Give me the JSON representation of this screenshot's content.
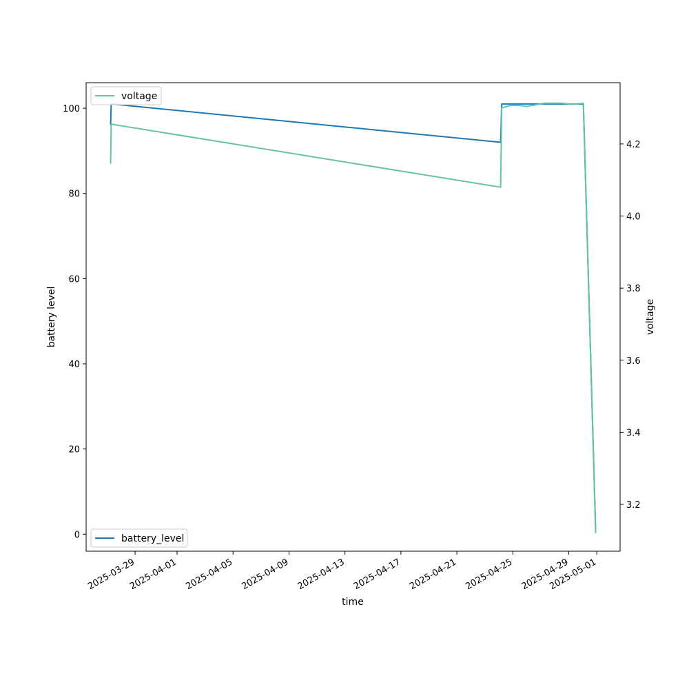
{
  "chart_data": {
    "type": "line",
    "xlabel": "time",
    "ylabel": "battery level",
    "y2label": "voltage",
    "x_ticks": [
      "2025-03-29",
      "2025-04-01",
      "2025-04-05",
      "2025-04-09",
      "2025-04-13",
      "2025-04-17",
      "2025-04-21",
      "2025-04-25",
      "2025-04-29",
      "2025-05-01"
    ],
    "xlim": [
      "2025-03-25T12:00",
      "2025-05-02T16:00"
    ],
    "ylim": [
      -4,
      106
    ],
    "y_ticks": [
      0,
      20,
      40,
      60,
      80,
      100
    ],
    "y2lim": [
      3.07,
      4.37
    ],
    "y2_ticks": [
      "3.2",
      "3.4",
      "3.6",
      "3.8",
      "4.0",
      "4.2"
    ],
    "grid": false,
    "series": [
      {
        "name": "battery_level",
        "axis": "left",
        "color": "#1f77b4",
        "legend": "lower-left",
        "points": [
          [
            "2025-03-27T06:00",
            96
          ],
          [
            "2025-03-27T07:00",
            101
          ],
          [
            "2025-04-24T03:00",
            92
          ],
          [
            "2025-04-24T05:00",
            101
          ],
          [
            "2025-04-27T12:00",
            101
          ],
          [
            "2025-04-30T01:00",
            101
          ],
          [
            "2025-04-30T22:00",
            1
          ]
        ]
      },
      {
        "name": "voltage",
        "axis": "right",
        "color": "#66c2a5",
        "legend": "upper-left",
        "points": [
          [
            "2025-03-27T06:00",
            4.145
          ],
          [
            "2025-03-27T07:00",
            4.255
          ],
          [
            "2025-04-24T03:00",
            4.08
          ],
          [
            "2025-04-24T05:00",
            4.3
          ],
          [
            "2025-04-24T20:00",
            4.307
          ],
          [
            "2025-04-25T10:00",
            4.307
          ],
          [
            "2025-04-26T00:00",
            4.304
          ],
          [
            "2025-04-27T06:00",
            4.313
          ],
          [
            "2025-04-28T12:00",
            4.313
          ],
          [
            "2025-04-29T06:00",
            4.31
          ],
          [
            "2025-04-30T01:00",
            4.313
          ],
          [
            "2025-04-30T22:00",
            3.12
          ]
        ]
      }
    ]
  }
}
